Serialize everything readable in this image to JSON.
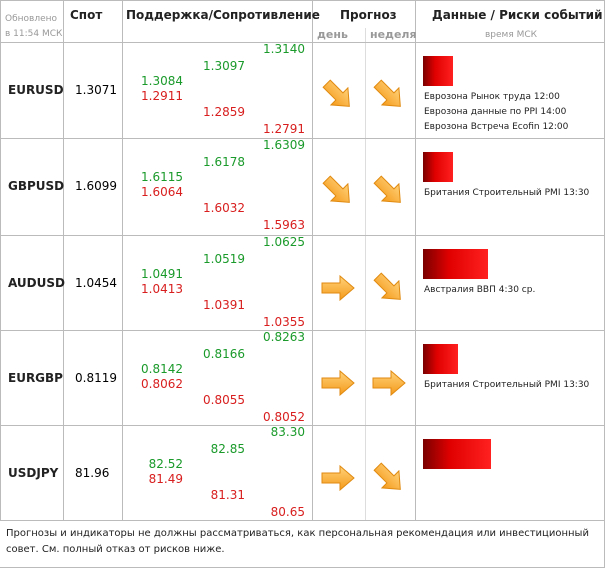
{
  "header": {
    "updated": "Обновлено",
    "updated_time": "в 11:54 МСК",
    "spot": "Спот",
    "levels": "Поддержка/Сопротивление",
    "forecast": "Прогноз",
    "day": "день",
    "week": "неделя",
    "events": "Данные / Риски событий",
    "events_time": "время МСК"
  },
  "rows": [
    {
      "pair": "EURUSD",
      "spot": "1.3071",
      "levels": [
        "1.3140",
        "1.3097",
        "1.3084",
        "1.2911",
        "1.2859",
        "1.2791"
      ],
      "events": [
        "Еврозона Рынок труда 12:00",
        "Еврозона данные по PPI 14:00",
        "Еврозона Встреча Ecofin 12:00"
      ]
    },
    {
      "pair": "GBPUSD",
      "spot": "1.6099",
      "levels": [
        "1.6309",
        "1.6178",
        "1.6115",
        "1.6064",
        "1.6032",
        "1.5963"
      ],
      "events": [
        "Британия Строительный PMI 13:30"
      ]
    },
    {
      "pair": "AUDUSD",
      "spot": "1.0454",
      "levels": [
        "1.0625",
        "1.0519",
        "1.0491",
        "1.0413",
        "1.0391",
        "1.0355"
      ],
      "events": [
        "Австралия ВВП 4:30 ср."
      ]
    },
    {
      "pair": "EURGBP",
      "spot": "0.8119",
      "levels": [
        "0.8263",
        "0.8166",
        "0.8142",
        "0.8062",
        "0.8055",
        "0.8052"
      ],
      "events": [
        "Британия Строительный PMI 13:30"
      ]
    },
    {
      "pair": "USDJPY",
      "spot": "81.96",
      "levels": [
        "83.30",
        "82.85",
        "82.52",
        "81.49",
        "81.31",
        "80.65"
      ],
      "events": []
    }
  ],
  "footer": "Прогнозы и индикаторы не должны рассматриваться, как персональная рекомендация или инвестиционный совет. См. полный отказ от рисков ниже."
}
